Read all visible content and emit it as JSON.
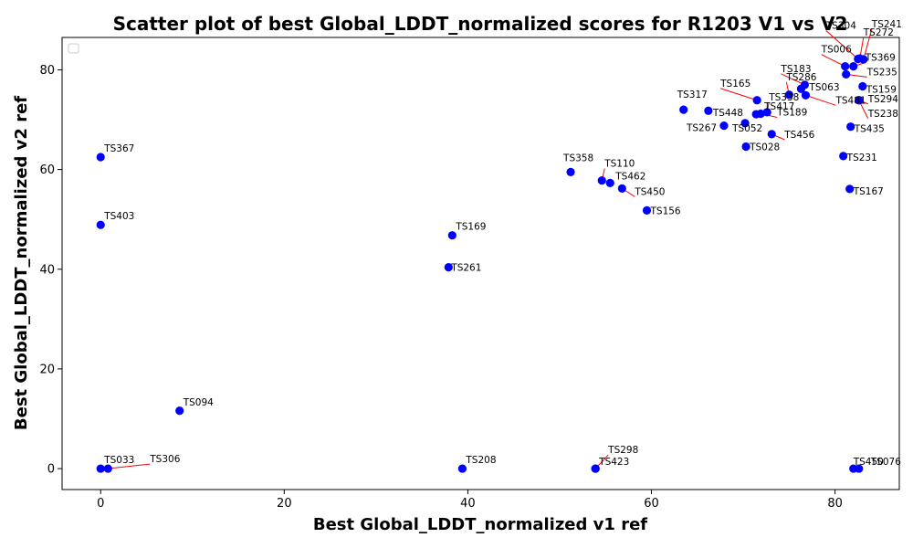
{
  "chart_data": {
    "type": "scatter",
    "title": "Scatter plot of best Global_LDDT_normalized scores for R1203 V1 vs V2",
    "xlabel": "Best Global_LDDT_normalized v1 ref",
    "ylabel": "Best Global_LDDT_normalized v2 ref",
    "xlim": [
      -4.2,
      87
    ],
    "ylim": [
      -4.2,
      86.5
    ],
    "xticks": [
      0,
      20,
      40,
      60,
      80
    ],
    "yticks": [
      0,
      20,
      40,
      60,
      80
    ],
    "grid": false,
    "legend": "top-left (empty)",
    "point_color": "#0000ff",
    "connector_color": "#ff0000",
    "points": [
      {
        "label": "TS367",
        "x": 0.0,
        "y": 62.5
      },
      {
        "label": "TS403",
        "x": 0.0,
        "y": 48.9
      },
      {
        "label": "TS033",
        "x": 0.0,
        "y": 0.0
      },
      {
        "label": "TS306",
        "x": 0.8,
        "y": 0.0
      },
      {
        "label": "TS094",
        "x": 8.6,
        "y": 11.6
      },
      {
        "label": "TS169",
        "x": 38.3,
        "y": 46.8
      },
      {
        "label": "TS261",
        "x": 37.9,
        "y": 40.4
      },
      {
        "label": "TS208",
        "x": 39.4,
        "y": 0.0
      },
      {
        "label": "TS358",
        "x": 51.2,
        "y": 59.5
      },
      {
        "label": "TS110",
        "x": 54.6,
        "y": 57.8
      },
      {
        "label": "TS462",
        "x": 55.5,
        "y": 57.3
      },
      {
        "label": "TS450",
        "x": 56.8,
        "y": 56.2
      },
      {
        "label": "TS156",
        "x": 59.5,
        "y": 51.8
      },
      {
        "label": "TS298",
        "x": 53.9,
        "y": 0.0
      },
      {
        "label": "TS423",
        "x": 53.9,
        "y": 0.0
      },
      {
        "label": "TS317",
        "x": 63.5,
        "y": 72.0
      },
      {
        "label": "TS448",
        "x": 66.2,
        "y": 71.8
      },
      {
        "label": "TS267",
        "x": 67.9,
        "y": 68.8
      },
      {
        "label": "TS052",
        "x": 70.2,
        "y": 69.3
      },
      {
        "label": "TS028",
        "x": 70.3,
        "y": 64.6
      },
      {
        "label": "TS165",
        "x": 71.5,
        "y": 73.9
      },
      {
        "label": "TS338",
        "x": 72.6,
        "y": 71.5
      },
      {
        "label": "TS417",
        "x": 71.4,
        "y": 71.1
      },
      {
        "label": "TS189",
        "x": 71.9,
        "y": 71.2
      },
      {
        "label": "TS456",
        "x": 73.1,
        "y": 67.1
      },
      {
        "label": "TS183",
        "x": 76.7,
        "y": 77.0
      },
      {
        "label": "TS286",
        "x": 75.0,
        "y": 75.0
      },
      {
        "label": "TS063",
        "x": 76.3,
        "y": 76.2
      },
      {
        "label": "TS481",
        "x": 76.8,
        "y": 74.9
      },
      {
        "label": "TS006",
        "x": 81.1,
        "y": 80.7
      },
      {
        "label": "TS304",
        "x": 82.5,
        "y": 82.2
      },
      {
        "label": "TS241",
        "x": 83.1,
        "y": 82.1
      },
      {
        "label": "TS272",
        "x": 82.7,
        "y": 82.3
      },
      {
        "label": "TS369",
        "x": 82.0,
        "y": 80.7
      },
      {
        "label": "TS235",
        "x": 81.2,
        "y": 79.1
      },
      {
        "label": "TS159",
        "x": 83.0,
        "y": 76.7
      },
      {
        "label": "TS294",
        "x": 82.6,
        "y": 73.9
      },
      {
        "label": "TS238",
        "x": 82.6,
        "y": 73.9
      },
      {
        "label": "TS435",
        "x": 81.7,
        "y": 68.6
      },
      {
        "label": "TS231",
        "x": 80.9,
        "y": 62.7
      },
      {
        "label": "TS167",
        "x": 81.6,
        "y": 56.1
      },
      {
        "label": "TS450",
        "x": 82.0,
        "y": 0.0
      },
      {
        "label": "TS076",
        "x": 82.6,
        "y": 0.0
      }
    ]
  }
}
